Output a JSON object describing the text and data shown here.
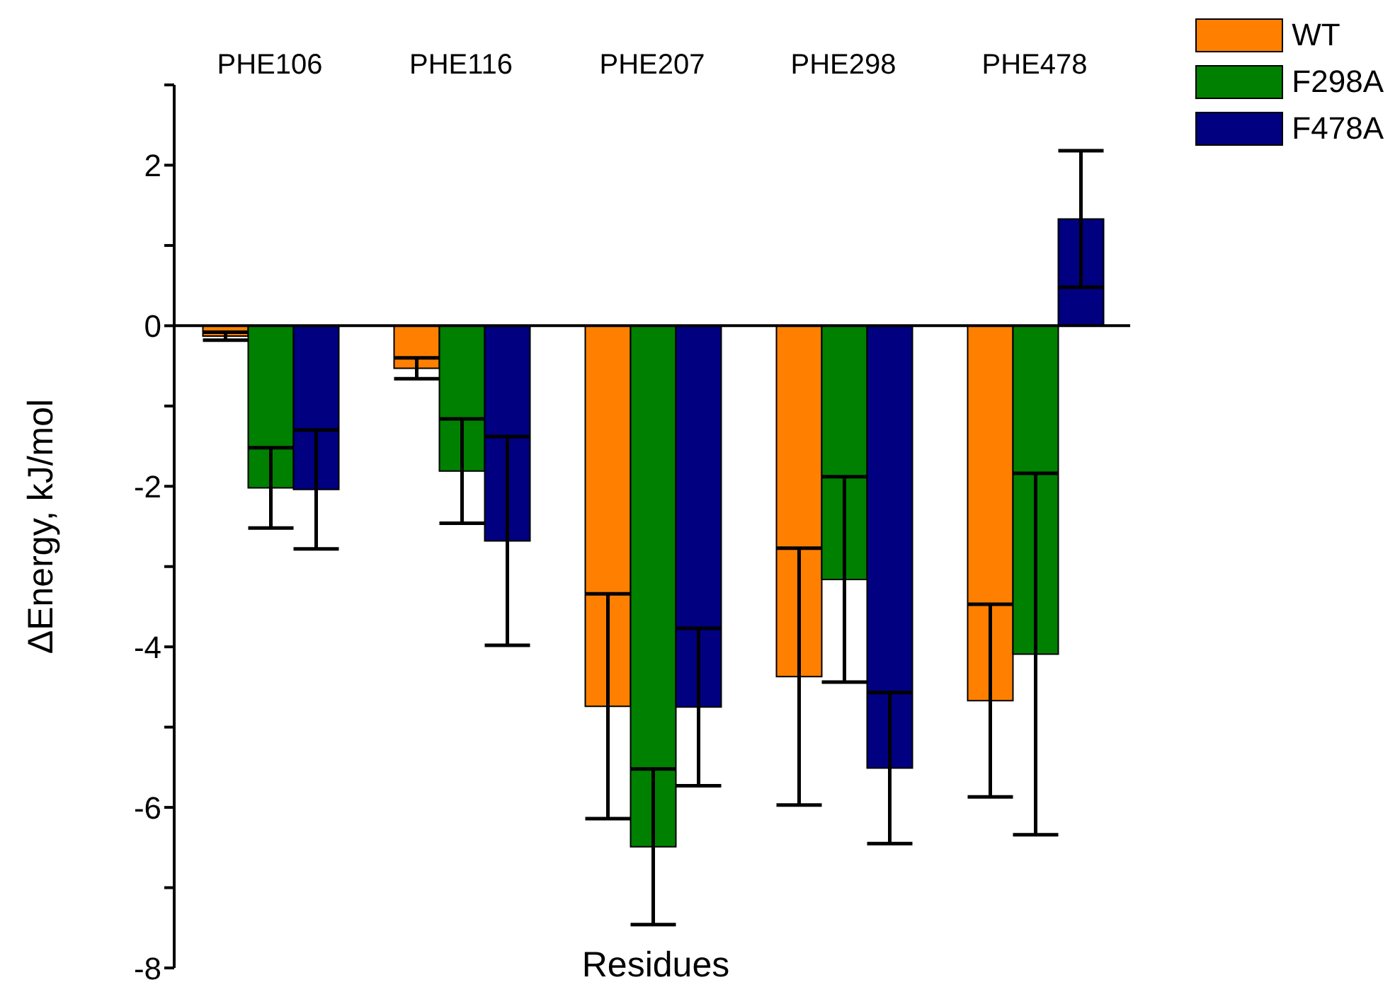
{
  "chart_data": {
    "type": "bar",
    "xlabel": "Residues",
    "ylabel": "ΔEnergy, kJ/mol",
    "categories": [
      "PHE106",
      "PHE116",
      "PHE207",
      "PHE298",
      "PHE478"
    ],
    "series": [
      {
        "name": "WT",
        "color": "#ff8000",
        "values": [
          -0.13,
          -0.53,
          -4.74,
          -4.37,
          -4.67
        ],
        "errors": [
          0.05,
          0.13,
          1.4,
          1.6,
          1.2
        ]
      },
      {
        "name": "F298A",
        "color": "#008000",
        "values": [
          -2.02,
          -1.81,
          -6.49,
          -3.16,
          -4.09
        ],
        "errors": [
          0.5,
          0.65,
          0.97,
          1.28,
          2.25
        ]
      },
      {
        "name": "F478A",
        "color": "#000080",
        "values": [
          -2.04,
          -2.68,
          -4.75,
          -5.51,
          1.33
        ],
        "errors": [
          0.74,
          1.3,
          0.98,
          0.94,
          0.85
        ]
      }
    ],
    "ylim": [
      -8,
      3
    ],
    "yticks": [
      -8,
      {
        "value": -7,
        "label": null
      },
      -6,
      {
        "value": -5,
        "label": null
      },
      -4,
      {
        "value": -3,
        "label": null
      },
      -2,
      {
        "value": -1,
        "label": null
      },
      0,
      {
        "value": 1,
        "label": null
      },
      2,
      {
        "value": 3,
        "label": null
      }
    ],
    "legend": "top right"
  }
}
